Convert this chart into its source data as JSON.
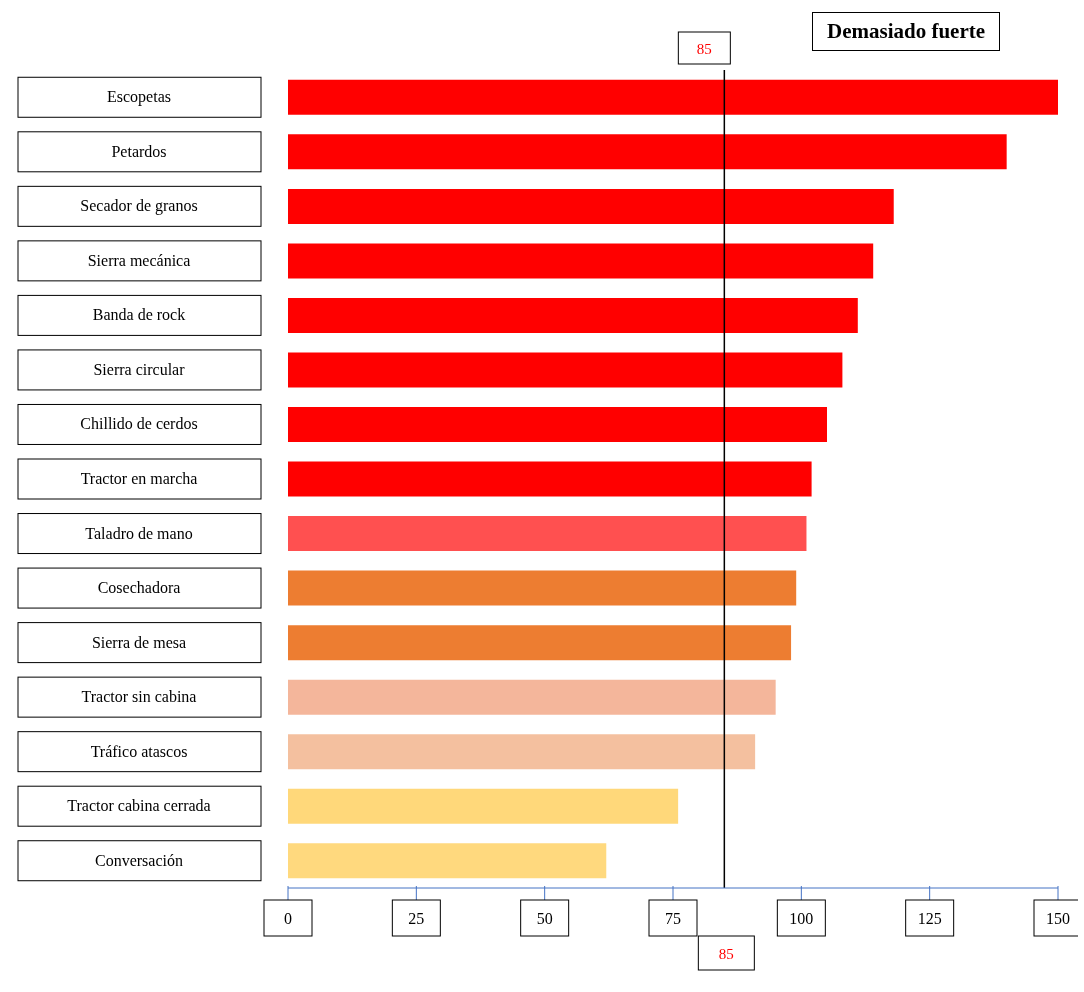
{
  "chart_data": {
    "type": "bar",
    "orientation": "horizontal",
    "categories": [
      "Escopetas",
      "Petardos",
      "Secador de granos",
      "Sierra mecánica",
      "Banda de rock",
      "Sierra circular",
      "Chillido de cerdos",
      "Tractor en marcha",
      "Taladro de mano",
      "Cosechadora",
      "Sierra de mesa",
      "Tractor sin cabina",
      "Tráfico atascos",
      "Tractor cabina cerrada",
      "Conversación"
    ],
    "values": [
      150,
      140,
      118,
      114,
      111,
      108,
      105,
      102,
      101,
      99,
      98,
      95,
      91,
      76,
      62
    ],
    "colors": [
      "#ff0000",
      "#ff0000",
      "#ff0000",
      "#ff0000",
      "#ff0000",
      "#ff0000",
      "#ff0000",
      "#ff0000",
      "#ff5050",
      "#ed7d31",
      "#ed7d31",
      "#f4b69b",
      "#f4c09f",
      "#ffd87a",
      "#ffd97e"
    ],
    "xlim": [
      0,
      150
    ],
    "xticks": [
      0,
      25,
      50,
      75,
      100,
      125,
      150
    ],
    "ref_lines": [
      {
        "axis": "x",
        "value": 85,
        "label": "85",
        "color": "#000000"
      }
    ],
    "annotations": [
      "Demasiado fuerte"
    ]
  }
}
